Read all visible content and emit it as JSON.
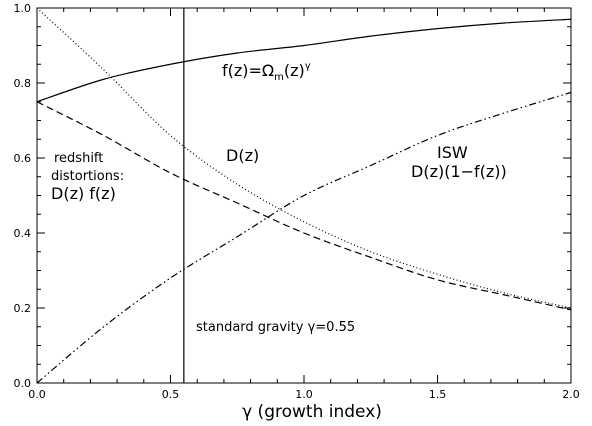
{
  "chart_data": {
    "type": "line",
    "title": "",
    "xlabel": "γ (growth index)",
    "ylabel": "",
    "xlim": [
      0.0,
      2.0
    ],
    "ylim": [
      0.0,
      1.0
    ],
    "x_ticks": [
      "0.0",
      "0.5",
      "1.0",
      "1.5",
      "2.0"
    ],
    "y_ticks": [
      "0.0",
      "0.2",
      "0.4",
      "0.6",
      "0.8",
      "1.0"
    ],
    "grid": false,
    "vline": {
      "x": 0.55
    },
    "series": [
      {
        "style": "solid",
        "x": [
          0.0,
          0.25,
          0.5,
          0.75,
          1.0,
          1.25,
          1.5,
          1.75,
          2.0
        ],
        "y": [
          0.75,
          0.81,
          0.85,
          0.88,
          0.9,
          0.925,
          0.945,
          0.96,
          0.97
        ]
      },
      {
        "style": "dotted",
        "x": [
          0.0,
          0.25,
          0.5,
          0.75,
          1.0,
          1.25,
          1.5,
          1.75,
          2.0
        ],
        "y": [
          1.0,
          0.835,
          0.66,
          0.53,
          0.43,
          0.35,
          0.29,
          0.24,
          0.2
        ]
      },
      {
        "style": "dashed",
        "x": [
          0.0,
          0.25,
          0.5,
          0.75,
          1.0,
          1.25,
          1.5,
          1.75,
          2.0
        ],
        "y": [
          0.75,
          0.66,
          0.56,
          0.48,
          0.4,
          0.335,
          0.275,
          0.235,
          0.195
        ]
      },
      {
        "style": "dash-dot-dot",
        "x": [
          0.0,
          0.25,
          0.5,
          0.75,
          1.0,
          1.25,
          1.5,
          1.75,
          2.0
        ],
        "y": [
          0.0,
          0.15,
          0.28,
          0.39,
          0.5,
          0.58,
          0.66,
          0.72,
          0.775
        ]
      }
    ],
    "annotations": {
      "f_label": "f(z)=Ω",
      "f_sub": "m",
      "f_label_tail": "(z)",
      "f_sup": "γ",
      "Dz": "D(z)",
      "isw_title": "ISW",
      "isw_formula": "D(z)(1−f(z))",
      "rsd_line1": "redshift",
      "rsd_line2": "distortions:",
      "rsd_line3": "D(z) f(z)",
      "standard": "standard gravity γ=0.55"
    }
  }
}
